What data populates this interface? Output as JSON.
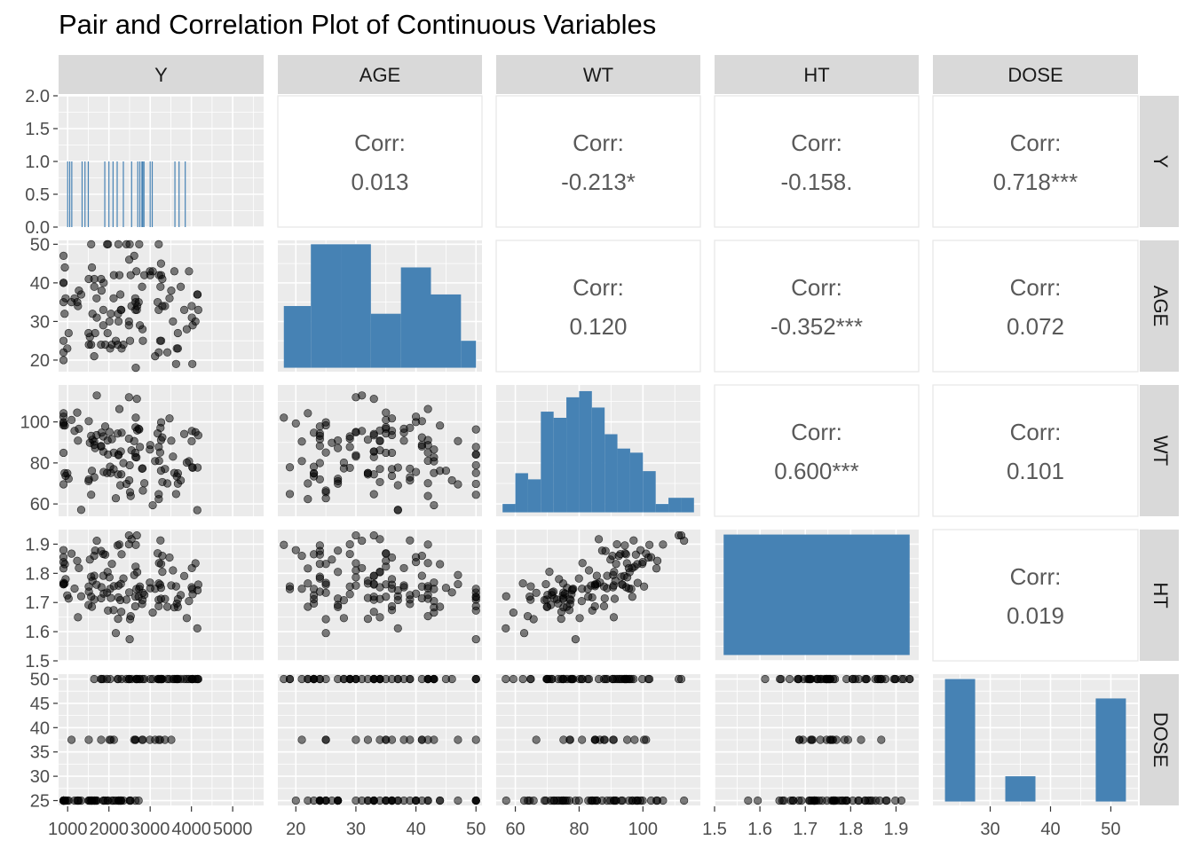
{
  "title": "Pair and Correlation Plot of Continuous Variables",
  "colors": {
    "panel_bg": "#ebebeb",
    "grid": "#ffffff",
    "strip_bg": "#d9d9d9",
    "fill": "#4682b4",
    "point": "#000000",
    "corr_text": "#595959",
    "tick_text": "#4d4d4d",
    "strip_text": "#1a1a1a"
  },
  "chart_data": {
    "type": "pairs",
    "title": "Pair and Correlation Plot of Continuous Variables",
    "variables": [
      "Y",
      "AGE",
      "WT",
      "HT",
      "DOSE"
    ],
    "corr_label": "Corr:",
    "axes": {
      "Y": {
        "lim": [
          780,
          5750
        ],
        "breaks": [
          1000,
          2000,
          3000,
          4000,
          5000
        ],
        "labels": [
          "1000",
          "2000",
          "3000",
          "4000",
          "5000"
        ]
      },
      "AGE": {
        "lim": [
          17,
          51
        ],
        "breaks": [
          20,
          30,
          40,
          50
        ],
        "labels": [
          "20",
          "30",
          "40",
          "50"
        ]
      },
      "WT": {
        "lim": [
          54,
          118
        ],
        "breaks": [
          60,
          80,
          100
        ],
        "labels": [
          "60",
          "80",
          "100"
        ]
      },
      "HT": {
        "lim": [
          1.5,
          1.95
        ],
        "breaks": [
          1.5,
          1.6,
          1.7,
          1.8,
          1.9
        ],
        "labels": [
          "1.5",
          "1.6",
          "1.7",
          "1.8",
          "1.9"
        ]
      },
      "DOSE": {
        "lim": [
          24,
          51
        ],
        "breaks": [
          25,
          30,
          35,
          40,
          45,
          50
        ],
        "labels": [
          "25",
          "30",
          "35",
          "40",
          "45",
          "50"
        ]
      },
      "DOSE_x": {
        "lim": [
          20.5,
          54.5
        ],
        "breaks": [
          30,
          40,
          50
        ],
        "labels": [
          "30",
          "40",
          "50"
        ]
      },
      "Y_density": {
        "lim": [
          0,
          2.0
        ],
        "breaks": [
          0,
          0.5,
          1.0,
          1.5,
          2.0
        ],
        "labels": [
          "0.0",
          "0.5",
          "1.0",
          "1.5",
          "2.0"
        ]
      }
    },
    "correlations": [
      {
        "row": "Y",
        "col": "AGE",
        "value": "0.013"
      },
      {
        "row": "Y",
        "col": "WT",
        "value": "-0.213*"
      },
      {
        "row": "Y",
        "col": "HT",
        "value": "-0.158."
      },
      {
        "row": "Y",
        "col": "DOSE",
        "value": "0.718***"
      },
      {
        "row": "AGE",
        "col": "WT",
        "value": "0.120"
      },
      {
        "row": "AGE",
        "col": "HT",
        "value": "-0.352***"
      },
      {
        "row": "AGE",
        "col": "DOSE",
        "value": "0.072"
      },
      {
        "row": "WT",
        "col": "HT",
        "value": "0.600***"
      },
      {
        "row": "WT",
        "col": "DOSE",
        "value": "0.101"
      },
      {
        "row": "HT",
        "col": "DOSE",
        "value": "0.019"
      }
    ],
    "Y_rug": [
      1000,
      1050,
      1100,
      1350,
      1420,
      1500,
      1900,
      2000,
      2100,
      2200,
      2350,
      2550,
      2700,
      2750,
      2800,
      2820,
      2850,
      3000,
      3050,
      3600,
      3700,
      3850
    ],
    "histograms": {
      "AGE": {
        "breaks": [
          18,
          22.5,
          27.5,
          32.5,
          37.5,
          42.5,
          47.5,
          50
        ],
        "counts": [
          34,
          50,
          50,
          32,
          44,
          37,
          25
        ],
        "ylim": [
          17,
          51
        ]
      },
      "WT": {
        "breaks": [
          56,
          60,
          64,
          68,
          72,
          76,
          80,
          84,
          88,
          92,
          96,
          100,
          104,
          108,
          112,
          116
        ],
        "counts": [
          60,
          75,
          72,
          105,
          102,
          112,
          115,
          107,
          94,
          87,
          85,
          76,
          60,
          63,
          63
        ],
        "ylim": [
          54,
          118
        ]
      },
      "HT": {
        "breaks": [
          1.52,
          1.93
        ],
        "counts": [
          1.933
        ],
        "ylim": [
          1.5,
          1.95
        ]
      },
      "DOSE": {
        "breaks": [
          22.5,
          27.5,
          32.5,
          37.5,
          42.5,
          47.5,
          52.5
        ],
        "counts": [
          50,
          0,
          30,
          0,
          0,
          46
        ],
        "ylim": [
          24,
          51
        ]
      }
    }
  }
}
